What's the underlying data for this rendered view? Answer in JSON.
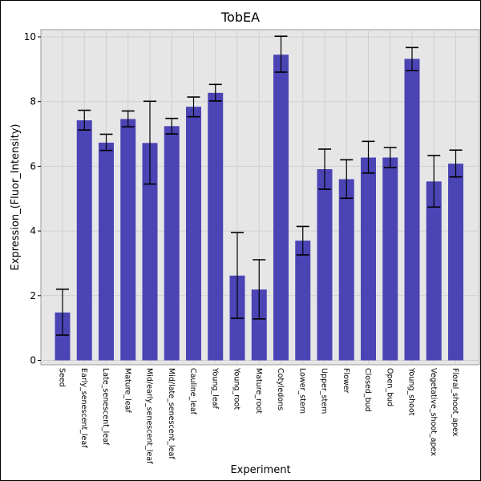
{
  "chart_data": {
    "type": "bar",
    "title": "TobEA",
    "xlabel": "Experiment",
    "ylabel": "Expression_(Fluor_Intensity)",
    "ylim": [
      0,
      10
    ],
    "yticks": [
      0,
      2,
      4,
      6,
      8,
      10
    ],
    "grid": true,
    "bar_color": "#4B44B5",
    "plot_background": "#E6E6E6",
    "categories": [
      "Seed",
      "Early_senescent_leaf",
      "Late_senescent_leaf",
      "Mature_leaf",
      "Mid/early_senescent_leaf",
      "Mid/late_senescent_leaf",
      "Cauline_leaf",
      "Young_leaf",
      "Young_root",
      "Mature_root",
      "Cotyledons",
      "Lower_stem",
      "Upper_stem",
      "Flower",
      "Closed_bud",
      "Open_bud",
      "Young_shoot",
      "Vegetative_shoot_apex",
      "Floral_shoot_apex"
    ],
    "values": [
      1.48,
      7.42,
      6.73,
      7.46,
      6.72,
      7.24,
      7.84,
      8.27,
      2.62,
      2.19,
      9.45,
      3.7,
      5.91,
      5.6,
      6.27,
      6.27,
      9.32,
      5.53,
      6.08
    ],
    "error_low": [
      0.78,
      7.12,
      6.49,
      7.22,
      5.45,
      7.0,
      7.53,
      8.02,
      1.3,
      1.28,
      8.91,
      3.26,
      5.29,
      5.01,
      5.79,
      5.96,
      8.96,
      4.74,
      5.67
    ],
    "error_high": [
      2.2,
      7.73,
      6.99,
      7.71,
      8.01,
      7.48,
      8.14,
      8.53,
      3.95,
      3.11,
      10.02,
      4.14,
      6.53,
      6.2,
      6.77,
      6.58,
      9.67,
      6.33,
      6.5
    ]
  }
}
